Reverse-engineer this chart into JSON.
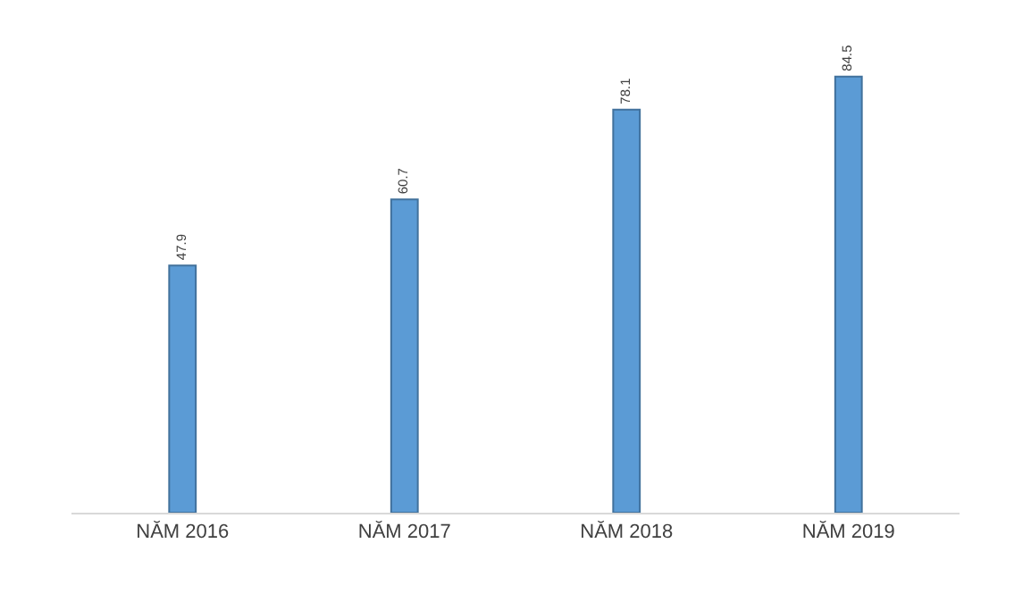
{
  "chart_data": {
    "type": "bar",
    "categories": [
      "NĂM 2016",
      "NĂM 2017",
      "NĂM 2018",
      "NĂM 2019"
    ],
    "values": [
      47.9,
      60.7,
      78.1,
      84.5
    ],
    "color": "#5b9bd5",
    "data_labels": true
  }
}
